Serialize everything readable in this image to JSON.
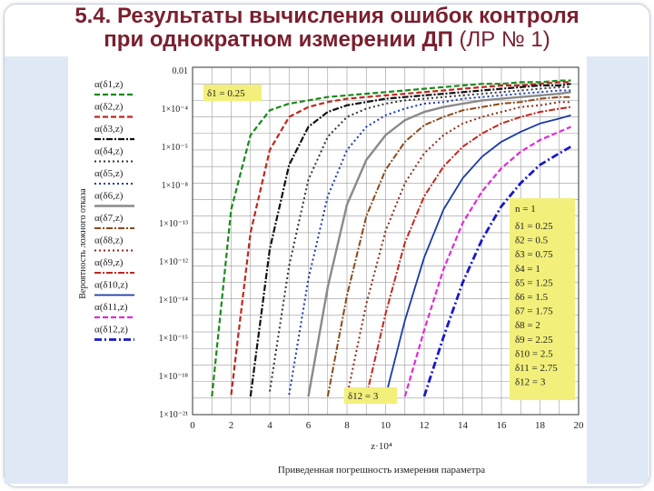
{
  "slide": {
    "title_line1": "5.4. Результаты вычисления ошибок контроля",
    "title_line2_bold": "при однократном измерении ДП",
    "title_line2_rest": " (ЛР № 1)"
  },
  "chart_data": {
    "type": "line",
    "title": "",
    "xlabel": "Приведенная погрешность измерения параметра",
    "x_axis_unit_label": "z·10⁴",
    "ylabel": "Вероятность ложного отказа",
    "xlim": [
      0,
      20
    ],
    "ylim_log10": [
      -23,
      -2
    ],
    "x_ticks": [
      "0",
      "2",
      "4",
      "6",
      "8",
      "10",
      "12",
      "14",
      "16",
      "18",
      "20"
    ],
    "y_ticks": [
      "0.01",
      "1×10⁻⁴",
      "1×10⁻⁵",
      "1×10⁻⁸",
      "1×10⁻¹³",
      "1×10⁻¹²",
      "1×10⁻¹⁴",
      "1×10⁻¹⁵",
      "1×10⁻¹⁸",
      "1×10⁻²¹"
    ],
    "grid": true,
    "legend_position": "left",
    "n_label": "n = 1",
    "annotation_first": "δ1 = 0.25",
    "annotation_last": "δ12 = 3",
    "delta_values": [
      "δ1 = 0.25",
      "δ2 = 0.5",
      "δ3 = 0.75",
      "δ4 = 1",
      "δ5 = 1.25",
      "δ6 = 1.5",
      "δ7 = 1.75",
      "δ8 = 2",
      "δ9 = 2.25",
      "δ10 = 2.5",
      "δ11 = 2.75",
      "δ12 = 3"
    ],
    "x": [
      0,
      1,
      2,
      3,
      4,
      5,
      6,
      7,
      8,
      9,
      10,
      11,
      12,
      13,
      14,
      15,
      16,
      17,
      18,
      19,
      19.6
    ],
    "series": [
      {
        "name": "α(δ1,z)",
        "color": "#1a8a1a",
        "dash": "6,3",
        "width": 2.2,
        "values": [
          null,
          -21.9,
          -10.6,
          -6.1,
          -4.6,
          -4.2,
          -4.0,
          -3.8,
          -3.7,
          -3.6,
          -3.5,
          -3.4,
          -3.3,
          -3.2,
          -3.1,
          -3.0,
          -3.0,
          -2.9,
          -2.9,
          -2.8,
          -2.8
        ]
      },
      {
        "name": "α(δ2,z)",
        "color": "#c0281e",
        "dash": "6,3",
        "width": 2.2,
        "values": [
          null,
          null,
          -21.8,
          -12.0,
          -7.0,
          -5.0,
          -4.4,
          -4.1,
          -3.9,
          -3.8,
          -3.7,
          -3.6,
          -3.5,
          -3.4,
          -3.3,
          -3.2,
          -3.1,
          -3.1,
          -3.0,
          -2.9,
          -2.9
        ]
      },
      {
        "name": "α(δ3,z)",
        "color": "#111111",
        "dash": "7,2,2,2",
        "width": 2.2,
        "values": [
          null,
          null,
          null,
          -21.9,
          -13.0,
          -7.9,
          -5.6,
          -4.7,
          -4.3,
          -4.1,
          -3.9,
          -3.8,
          -3.7,
          -3.6,
          -3.5,
          -3.4,
          -3.3,
          -3.2,
          -3.1,
          -3.1,
          -3.0
        ]
      },
      {
        "name": "α(δ4,z)",
        "color": "#333333",
        "dash": "2,3",
        "width": 2.0,
        "values": [
          null,
          null,
          null,
          null,
          -21.6,
          -14.0,
          -8.8,
          -6.2,
          -5.0,
          -4.5,
          -4.2,
          -4.0,
          -3.9,
          -3.8,
          -3.7,
          -3.6,
          -3.5,
          -3.4,
          -3.3,
          -3.2,
          -3.2
        ]
      },
      {
        "name": "α(δ5,z)",
        "color": "#1a3aa8",
        "dash": "2,3",
        "width": 2.0,
        "values": [
          null,
          null,
          null,
          null,
          null,
          -21.8,
          -14.8,
          -9.8,
          -7.0,
          -5.6,
          -4.9,
          -4.5,
          -4.2,
          -4.1,
          -3.9,
          -3.8,
          -3.7,
          -3.6,
          -3.5,
          -3.4,
          -3.4
        ]
      },
      {
        "name": "α(δ6,z)",
        "color": "#8a8a8a",
        "dash": "",
        "width": 2.4,
        "values": [
          null,
          null,
          null,
          null,
          null,
          null,
          -21.9,
          -15.3,
          -10.3,
          -7.6,
          -6.1,
          -5.2,
          -4.7,
          -4.4,
          -4.2,
          -4.0,
          -3.9,
          -3.8,
          -3.7,
          -3.6,
          -3.5
        ]
      },
      {
        "name": "α(δ7,z)",
        "color": "#8a4a1a",
        "dash": "7,2,2,2",
        "width": 2.0,
        "values": [
          null,
          null,
          null,
          null,
          null,
          null,
          null,
          -21.9,
          -15.8,
          -11.0,
          -8.2,
          -6.5,
          -5.5,
          -5.0,
          -4.6,
          -4.4,
          -4.2,
          -4.1,
          -3.9,
          -3.8,
          -3.8
        ]
      },
      {
        "name": "α(δ8,z)",
        "color": "#8a2a1a",
        "dash": "2,3",
        "width": 2.0,
        "values": [
          null,
          null,
          null,
          null,
          null,
          null,
          null,
          null,
          -21.9,
          -16.3,
          -11.9,
          -9.0,
          -7.2,
          -6.1,
          -5.4,
          -5.0,
          -4.7,
          -4.4,
          -4.3,
          -4.1,
          -4.1
        ]
      },
      {
        "name": "α(δ9,z)",
        "color": "#c0281e",
        "dash": "7,2,2,2",
        "width": 2.0,
        "values": [
          null,
          null,
          null,
          null,
          null,
          null,
          null,
          null,
          null,
          -21.9,
          -16.9,
          -12.6,
          -9.8,
          -8.0,
          -6.8,
          -6.0,
          -5.4,
          -5.0,
          -4.7,
          -4.5,
          -4.4
        ]
      },
      {
        "name": "α(δ10,z)",
        "color": "#1a3aa8",
        "dash": "",
        "width": 1.8,
        "values": [
          null,
          null,
          null,
          null,
          null,
          null,
          null,
          null,
          null,
          null,
          -21.9,
          -17.3,
          -13.5,
          -10.6,
          -8.7,
          -7.4,
          -6.5,
          -5.9,
          -5.4,
          -5.1,
          -4.9
        ]
      },
      {
        "name": "α(δ11,z)",
        "color": "#e02ad8",
        "dash": "6,3",
        "width": 2.2,
        "values": [
          null,
          null,
          null,
          null,
          null,
          null,
          null,
          null,
          null,
          null,
          null,
          -21.9,
          -17.9,
          -14.2,
          -11.4,
          -9.5,
          -8.1,
          -7.1,
          -6.4,
          -5.9,
          -5.6
        ]
      },
      {
        "name": "α(δ12,z)",
        "color": "#1818c8",
        "dash": "8,3,2,3",
        "width": 2.8,
        "values": [
          null,
          null,
          null,
          null,
          null,
          null,
          null,
          null,
          null,
          null,
          null,
          null,
          -21.9,
          -18.3,
          -15.0,
          -12.4,
          -10.4,
          -9.0,
          -7.9,
          -7.2,
          -6.8
        ]
      }
    ]
  }
}
